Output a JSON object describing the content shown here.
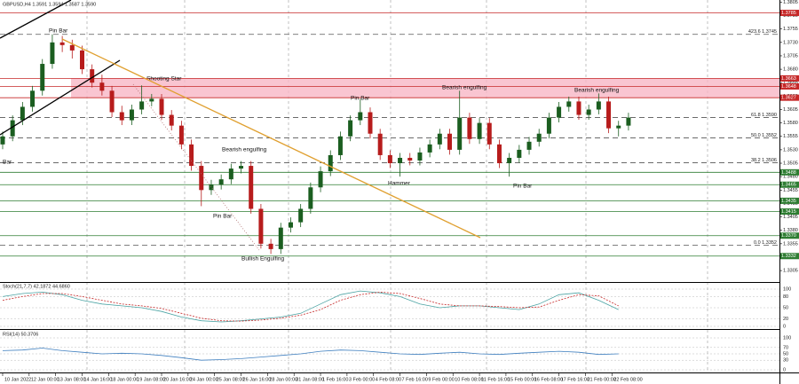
{
  "chart_data": [
    {
      "type": "candlestick",
      "title": "GBPUSD,H4 1.3591 1.3594 1.3587 1.3590",
      "x": [
        0,
        3,
        6,
        9,
        12,
        15,
        18,
        21,
        24,
        27,
        30,
        33,
        36,
        39,
        42,
        45,
        48,
        51,
        54,
        57,
        60,
        63,
        66,
        69,
        72,
        75,
        78,
        81,
        84,
        87,
        90,
        93,
        96,
        99,
        102,
        105,
        108,
        111,
        114,
        117,
        120,
        123,
        126,
        129,
        132,
        135,
        138,
        141,
        144,
        147,
        150,
        153,
        156,
        159,
        162,
        165,
        168,
        171,
        174,
        177,
        180,
        183,
        186,
        189
      ],
      "open": [
        1.354,
        1.3555,
        1.3585,
        1.361,
        1.364,
        1.369,
        1.373,
        1.3725,
        1.3715,
        1.368,
        1.3655,
        1.364,
        1.36,
        1.3585,
        1.3605,
        1.362,
        1.3625,
        1.3595,
        1.3575,
        1.354,
        1.35,
        1.3455,
        1.3465,
        1.3475,
        1.3495,
        1.35,
        1.342,
        1.3355,
        1.3345,
        1.3385,
        1.3395,
        1.342,
        1.346,
        1.349,
        1.352,
        1.3555,
        1.3585,
        1.36,
        1.356,
        1.352,
        1.3505,
        1.3515,
        1.351,
        1.3525,
        1.354,
        1.356,
        1.353,
        1.359,
        1.355,
        1.358,
        1.354,
        1.3505,
        1.3515,
        1.353,
        1.3545,
        1.356,
        1.359,
        1.361,
        1.362,
        1.3595,
        1.3605,
        1.362,
        1.357,
        1.3575
      ],
      "high": [
        1.3564,
        1.3594,
        1.3619,
        1.3649,
        1.3699,
        1.3745,
        1.3742,
        1.3735,
        1.3724,
        1.3689,
        1.367,
        1.3649,
        1.3612,
        1.3614,
        1.365,
        1.3634,
        1.3634,
        1.3604,
        1.3584,
        1.3549,
        1.3509,
        1.3474,
        1.3484,
        1.3504,
        1.3509,
        1.3509,
        1.3429,
        1.3364,
        1.3394,
        1.3404,
        1.3429,
        1.3469,
        1.3499,
        1.3529,
        1.3564,
        1.3594,
        1.3625,
        1.3609,
        1.3569,
        1.3529,
        1.3524,
        1.3524,
        1.3534,
        1.3549,
        1.3569,
        1.3569,
        1.364,
        1.3599,
        1.3589,
        1.3589,
        1.3549,
        1.3524,
        1.3539,
        1.3554,
        1.3569,
        1.3599,
        1.3619,
        1.3629,
        1.3629,
        1.3614,
        1.3635,
        1.3629,
        1.3584,
        1.3599
      ],
      "low": [
        1.3531,
        1.3546,
        1.3576,
        1.3601,
        1.3631,
        1.3681,
        1.3712,
        1.37,
        1.3671,
        1.3646,
        1.3631,
        1.3591,
        1.3576,
        1.3576,
        1.3596,
        1.3611,
        1.3586,
        1.3566,
        1.3531,
        1.3491,
        1.3425,
        1.3446,
        1.3456,
        1.3466,
        1.3486,
        1.3411,
        1.3346,
        1.3336,
        1.3336,
        1.3376,
        1.3386,
        1.3411,
        1.3451,
        1.3481,
        1.3511,
        1.3546,
        1.3576,
        1.3551,
        1.3511,
        1.3496,
        1.348,
        1.3501,
        1.3501,
        1.3516,
        1.3531,
        1.3521,
        1.3521,
        1.3541,
        1.3541,
        1.3531,
        1.3496,
        1.348,
        1.3506,
        1.3521,
        1.3536,
        1.3551,
        1.3581,
        1.3601,
        1.3586,
        1.3586,
        1.3596,
        1.3561,
        1.3555,
        1.3566
      ],
      "close": [
        1.3555,
        1.3585,
        1.361,
        1.364,
        1.369,
        1.373,
        1.3725,
        1.3715,
        1.368,
        1.3655,
        1.364,
        1.36,
        1.3585,
        1.3605,
        1.362,
        1.3625,
        1.3595,
        1.3575,
        1.354,
        1.35,
        1.3455,
        1.3465,
        1.3475,
        1.3495,
        1.35,
        1.342,
        1.3355,
        1.3345,
        1.3385,
        1.3395,
        1.342,
        1.346,
        1.349,
        1.352,
        1.3555,
        1.3585,
        1.36,
        1.356,
        1.352,
        1.3505,
        1.3515,
        1.351,
        1.3525,
        1.354,
        1.356,
        1.353,
        1.359,
        1.355,
        1.358,
        1.354,
        1.3505,
        1.3515,
        1.353,
        1.3545,
        1.356,
        1.359,
        1.361,
        1.362,
        1.3595,
        1.3605,
        1.362,
        1.357,
        1.3575,
        1.359
      ],
      "up_color": "#1b5e20",
      "down_color": "#b71c1c",
      "xlim": [
        -0.8,
        234.6
      ],
      "ylim": [
        1.3287,
        1.3809
      ],
      "yticks": [
        {
          "value": 1.3305,
          "label": "1.3305"
        },
        {
          "value": 1.333,
          "label": "1.3330"
        },
        {
          "value": 1.3355,
          "label": "1.3355"
        },
        {
          "value": 1.338,
          "label": "1.3380"
        },
        {
          "value": 1.3405,
          "label": "1.3405"
        },
        {
          "value": 1.343,
          "label": "1.3430"
        },
        {
          "value": 1.3455,
          "label": "1.3455"
        },
        {
          "value": 1.348,
          "label": "1.3480"
        },
        {
          "value": 1.3505,
          "label": "1.3505"
        },
        {
          "value": 1.353,
          "label": "1.3530"
        },
        {
          "value": 1.3555,
          "label": "1.3555"
        },
        {
          "value": 1.358,
          "label": "1.3580"
        },
        {
          "value": 1.3605,
          "label": "1.3605"
        },
        {
          "value": 1.363,
          "label": "1.3630"
        },
        {
          "value": 1.3655,
          "label": "1.3655"
        },
        {
          "value": 1.368,
          "label": "1.3680"
        },
        {
          "value": 1.3705,
          "label": "1.3705"
        },
        {
          "value": 1.373,
          "label": "1.3730"
        },
        {
          "value": 1.3755,
          "label": "1.3755"
        },
        {
          "value": 1.378,
          "label": "1.3780"
        },
        {
          "value": 1.3805,
          "label": "1.3805"
        }
      ],
      "xticks": [
        {
          "value": 0,
          "label": "10 Jan 2022"
        },
        {
          "value": 8,
          "label": "12 Jan 00:00"
        },
        {
          "value": 16,
          "label": "13 Jan 08:00"
        },
        {
          "value": 24,
          "label": "14 Jan 16:00"
        },
        {
          "value": 32,
          "label": "18 Jan 00:00"
        },
        {
          "value": 40,
          "label": "19 Jan 08:00"
        },
        {
          "value": 48,
          "label": "20 Jan 16:00"
        },
        {
          "value": 56,
          "label": "24 Jan 00:00"
        },
        {
          "value": 64,
          "label": "25 Jan 08:00"
        },
        {
          "value": 72,
          "label": "26 Jan 16:00"
        },
        {
          "value": 80,
          "label": "28 Jan 00:00"
        },
        {
          "value": 88,
          "label": "31 Jan 08:00"
        },
        {
          "value": 96,
          "label": "1 Feb 16:00"
        },
        {
          "value": 104,
          "label": "3 Feb 00:00"
        },
        {
          "value": 112,
          "label": "4 Feb 08:00"
        },
        {
          "value": 120,
          "label": "7 Feb 16:00"
        },
        {
          "value": 128,
          "label": "9 Feb 00:00"
        },
        {
          "value": 136,
          "label": "10 Feb 08:00"
        },
        {
          "value": 144,
          "label": "11 Feb 16:00"
        },
        {
          "value": 152,
          "label": "15 Feb 00:00"
        },
        {
          "value": 160,
          "label": "16 Feb 08:00"
        },
        {
          "value": 168,
          "label": "17 Feb 16:00"
        },
        {
          "value": 176,
          "label": "21 Feb 00:00"
        },
        {
          "value": 184,
          "label": "22 Feb 08:00"
        }
      ],
      "zone": [
        1.3627,
        1.3663
      ],
      "zone_color": "#f7b6c6",
      "levels": [
        {
          "value": 1.3785,
          "label": "1.3785",
          "style": "solid",
          "color": "#c62828"
        },
        {
          "value": 1.3745,
          "label": "423.6 1.3745",
          "style": "dashed",
          "color": "#555555"
        },
        {
          "value": 1.3663,
          "label": "1.3663",
          "style": "solid",
          "color": "#c62828"
        },
        {
          "value": 1.3648,
          "label": "1.3648",
          "style": "solid",
          "color": "#c62828"
        },
        {
          "value": 1.3627,
          "label": "1.3627",
          "style": "solid",
          "color": "#c62828"
        },
        {
          "value": 1.359,
          "label": "61.8 1.3590",
          "style": "dashed",
          "color": "#555555"
        },
        {
          "value": 1.3552,
          "label": "50.0 1.3552",
          "style": "dashed",
          "color": "#555555"
        },
        {
          "value": 1.3506,
          "label": "38.2 1.3506",
          "style": "dashed",
          "color": "#555555"
        },
        {
          "value": 1.3488,
          "label": "1.3488",
          "style": "solid",
          "color": "#2e7d32"
        },
        {
          "value": 1.3465,
          "label": "1.3465",
          "style": "solid",
          "color": "#2e7d32"
        },
        {
          "value": 1.3435,
          "label": "1.3435",
          "style": "solid",
          "color": "#2e7d32"
        },
        {
          "value": 1.3415,
          "label": "1.3415",
          "style": "solid",
          "color": "#2e7d32"
        },
        {
          "value": 1.337,
          "label": "1.3370",
          "style": "solid",
          "color": "#2e7d32"
        },
        {
          "value": 1.3352,
          "label": "0.0 1.3352",
          "style": "dashed",
          "color": "#555555"
        },
        {
          "value": 1.3332,
          "label": "1.3332",
          "style": "solid",
          "color": "#2e7d32"
        }
      ],
      "annotations": [
        "Pin Bar",
        "Shooting Star",
        "Bar",
        "Bearish engulfing",
        "Pin Bar",
        "Bullish Engulfing",
        "Pin Bar",
        "Bearish engulfing",
        "Hammer",
        "Pin Bar",
        "Bearish engulfing"
      ]
    },
    {
      "type": "line",
      "title": "Stoch(21,7,7) 42.1872 44.6860",
      "x": [
        0,
        6,
        12,
        18,
        24,
        30,
        36,
        42,
        48,
        54,
        60,
        66,
        72,
        78,
        84,
        90,
        96,
        102,
        108,
        114,
        120,
        126,
        132,
        138,
        144,
        150,
        156,
        162,
        168,
        174,
        180,
        186
      ],
      "series": [
        {
          "color": "#4aa3a3",
          "values": [
            80,
            88,
            92,
            85,
            70,
            60,
            55,
            50,
            40,
            25,
            15,
            12,
            15,
            20,
            25,
            35,
            60,
            85,
            95,
            90,
            80,
            60,
            50,
            55,
            55,
            50,
            45,
            60,
            85,
            90,
            70,
            45
          ]
        },
        {
          "color": "#c62828",
          "values": [
            70,
            80,
            88,
            88,
            80,
            70,
            60,
            55,
            48,
            35,
            22,
            15,
            14,
            17,
            22,
            30,
            45,
            70,
            85,
            92,
            88,
            75,
            60,
            55,
            55,
            53,
            50,
            52,
            70,
            85,
            82,
            55
          ]
        }
      ],
      "xlim": [
        -0.8,
        234.6
      ],
      "ylim": [
        0,
        100
      ],
      "yticks": [
        0,
        20,
        50,
        80,
        100
      ]
    },
    {
      "type": "line",
      "title": "RSI(14) 50.3706",
      "x": [
        0,
        6,
        12,
        18,
        24,
        30,
        36,
        42,
        48,
        54,
        60,
        66,
        72,
        78,
        84,
        90,
        96,
        102,
        108,
        114,
        120,
        126,
        132,
        138,
        144,
        150,
        156,
        162,
        168,
        174,
        180,
        186
      ],
      "series": [
        {
          "color": "#3f7fbf",
          "values": [
            60,
            62,
            68,
            60,
            55,
            50,
            52,
            50,
            45,
            38,
            30,
            32,
            35,
            40,
            45,
            50,
            58,
            62,
            60,
            55,
            50,
            48,
            52,
            55,
            50,
            48,
            52,
            55,
            58,
            55,
            48,
            50
          ]
        }
      ],
      "xlim": [
        -0.8,
        234.6
      ],
      "ylim": [
        0,
        100
      ],
      "yticks": [
        0,
        30,
        50,
        70,
        100
      ]
    }
  ]
}
